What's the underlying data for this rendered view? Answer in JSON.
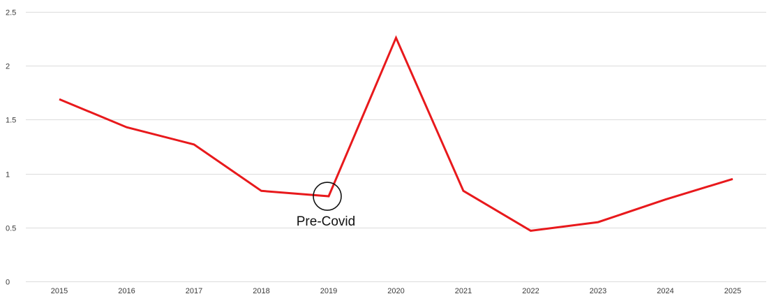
{
  "chart_data": {
    "type": "line",
    "title": "",
    "xlabel": "",
    "ylabel": "",
    "x": [
      "2015",
      "2016",
      "2017",
      "2018",
      "2019",
      "2020",
      "2021",
      "2022",
      "2023",
      "2024",
      "2025"
    ],
    "series": [
      {
        "values": [
          1.69,
          1.43,
          1.27,
          0.84,
          0.79,
          2.26,
          0.84,
          0.47,
          0.55,
          0.76,
          0.95
        ],
        "color": "#e8191c"
      }
    ],
    "ylim": [
      0,
      2.5
    ],
    "y_ticks": [
      "0",
      "0.5",
      "1",
      "1.5",
      "2",
      "2.5"
    ],
    "grid": "horizontal",
    "legend": "none",
    "annotations": [
      {
        "label": "Pre-Covid",
        "x": "2019",
        "y": 0.79,
        "marker": "circle"
      }
    ]
  }
}
